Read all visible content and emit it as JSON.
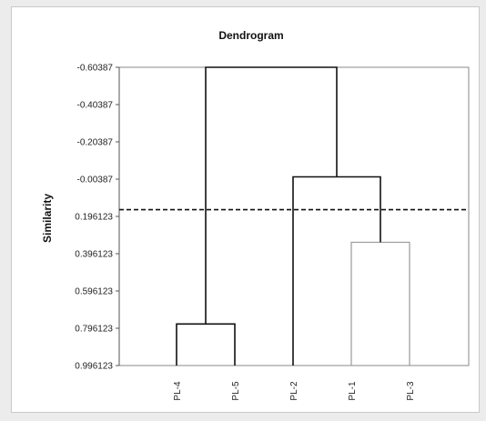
{
  "chart_data": {
    "type": "dendrogram",
    "title": "Dendrogram",
    "ylabel": "Similarity",
    "xlabel": "",
    "y_ticks": [
      "-0.60387",
      "-0.40387",
      "-0.20387",
      "-0.00387",
      "0.196123",
      "0.396123",
      "0.596123",
      "0.796123",
      "0.996123"
    ],
    "y_tick_values": [
      -0.60387,
      -0.40387,
      -0.20387,
      -0.00387,
      0.196123,
      0.396123,
      0.596123,
      0.796123,
      0.996123
    ],
    "ylim": [
      -0.60387,
      0.996123
    ],
    "y_inverted": true,
    "leaves": [
      "PL-4",
      "PL-5",
      "PL-2",
      "PL-1",
      "PL-3"
    ],
    "cut_line": 0.16,
    "merges": [
      {
        "left": "PL-4",
        "right": "PL-5",
        "height": 0.7734,
        "color": "#111111"
      },
      {
        "left": "PL-1",
        "right": "PL-3",
        "height": 0.3348,
        "color": "#9a9a9a"
      },
      {
        "left": "PL-2",
        "right": "PL-1 + PL-3",
        "height": -0.0161,
        "color": "#111111"
      },
      {
        "left": "PL-4 + PL-5",
        "right": "PL-2 + PL-1 + PL-3",
        "height": -0.60387,
        "color": "#111111"
      }
    ]
  }
}
